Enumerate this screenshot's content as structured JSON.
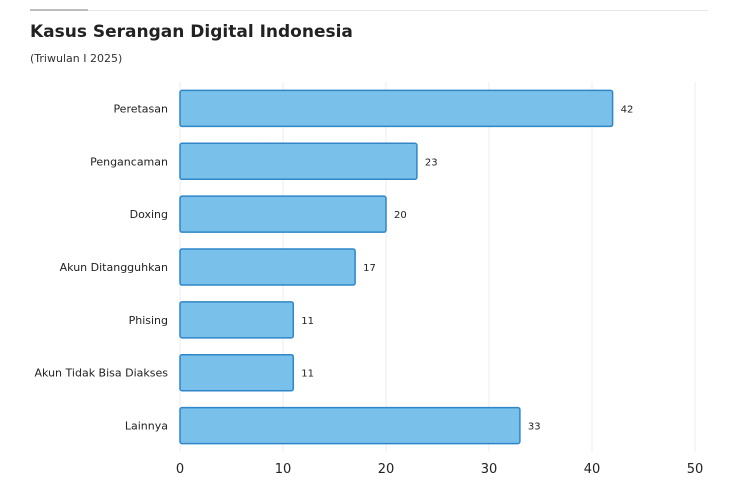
{
  "header": {
    "title": "Kasus Serangan Digital Indonesia",
    "subtitle": "(Triwulan I 2025)"
  },
  "chart_data": {
    "type": "bar",
    "orientation": "horizontal",
    "title": "Kasus Serangan Digital Indonesia",
    "subtitle": "(Triwulan I 2025)",
    "categories": [
      "Peretasan",
      "Pengancaman",
      "Doxing",
      "Akun Ditangguhkan",
      "Phising",
      "Akun Tidak Bisa Diakses",
      "Lainnya"
    ],
    "values": [
      42,
      23,
      20,
      17,
      11,
      11,
      33
    ],
    "xlim": [
      0,
      50
    ],
    "xticks": [
      0,
      10,
      20,
      30,
      40,
      50
    ],
    "xlabel": "",
    "ylabel": "",
    "grid": true,
    "data_labels": true,
    "colors": {
      "bar_fill": "#79c0ea",
      "bar_stroke": "#2f86c8",
      "grid": "#ececec",
      "text": "#222222"
    }
  }
}
